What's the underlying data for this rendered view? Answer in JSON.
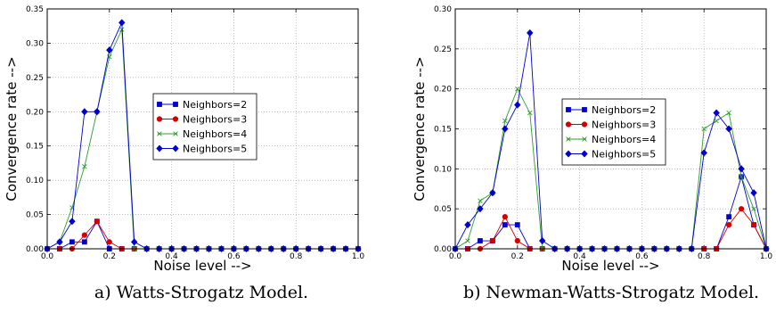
{
  "colors": {
    "series_colors": [
      "#0000cc",
      "#d40000",
      "#2e9c2e",
      "#0000cc"
    ],
    "grid": "#9a9a9a"
  },
  "chart_data": [
    {
      "type": "line",
      "caption": "a) Watts-Strogatz Model.",
      "xlabel": "Noise level -->",
      "ylabel": "Convergence rate -->",
      "xlim": [
        0.0,
        1.0
      ],
      "ylim": [
        0.0,
        0.35
      ],
      "xticks": [
        "0.0",
        "0.2",
        "0.4",
        "0.6",
        "0.8",
        "1.0"
      ],
      "yticks": [
        "0.00",
        "0.05",
        "0.10",
        "0.15",
        "0.20",
        "0.25",
        "0.30",
        "0.35"
      ],
      "grid": true,
      "legend_position": "center-right",
      "x": [
        0.0,
        0.04,
        0.08,
        0.12,
        0.16,
        0.2,
        0.24,
        0.28,
        0.32,
        0.36,
        0.4,
        0.44,
        0.48,
        0.52,
        0.56,
        0.6,
        0.64,
        0.68,
        0.72,
        0.76,
        0.8,
        0.84,
        0.88,
        0.92,
        0.96,
        1.0
      ],
      "series": [
        {
          "name": "Neighbors=2",
          "marker": "square",
          "values": [
            0,
            0,
            0.01,
            0.01,
            0.04,
            0,
            0,
            0,
            0,
            0,
            0,
            0,
            0,
            0,
            0,
            0,
            0,
            0,
            0,
            0,
            0,
            0,
            0,
            0,
            0,
            0
          ]
        },
        {
          "name": "Neighbors=3",
          "marker": "circle",
          "values": [
            0,
            0,
            0,
            0.02,
            0.04,
            0.01,
            0,
            0,
            0,
            0,
            0,
            0,
            0,
            0,
            0,
            0,
            0,
            0,
            0,
            0,
            0,
            0,
            0,
            0,
            0,
            0
          ]
        },
        {
          "name": "Neighbors=4",
          "marker": "x",
          "values": [
            0,
            0.01,
            0.06,
            0.12,
            0.2,
            0.28,
            0.32,
            0,
            0,
            0,
            0,
            0,
            0,
            0,
            0,
            0,
            0,
            0,
            0,
            0,
            0,
            0,
            0,
            0,
            0,
            0
          ]
        },
        {
          "name": "Neighbors=5",
          "marker": "diamond",
          "values": [
            0,
            0.01,
            0.04,
            0.2,
            0.2,
            0.29,
            0.33,
            0.01,
            0,
            0,
            0,
            0,
            0,
            0,
            0,
            0,
            0,
            0,
            0,
            0,
            0,
            0,
            0,
            0,
            0,
            0
          ]
        }
      ]
    },
    {
      "type": "line",
      "caption": "b) Newman-Watts-Strogatz Model.",
      "xlabel": "Noise level -->",
      "ylabel": "Convergence rate -->",
      "xlim": [
        0.0,
        1.0
      ],
      "ylim": [
        0.0,
        0.3
      ],
      "xticks": [
        "0.0",
        "0.2",
        "0.4",
        "0.6",
        "0.8",
        "1.0"
      ],
      "yticks": [
        "0.00",
        "0.05",
        "0.10",
        "0.15",
        "0.20",
        "0.25",
        "0.30"
      ],
      "grid": true,
      "legend_position": "center",
      "x": [
        0.0,
        0.04,
        0.08,
        0.12,
        0.16,
        0.2,
        0.24,
        0.28,
        0.32,
        0.36,
        0.4,
        0.44,
        0.48,
        0.52,
        0.56,
        0.6,
        0.64,
        0.68,
        0.72,
        0.76,
        0.8,
        0.84,
        0.88,
        0.92,
        0.96,
        1.0
      ],
      "series": [
        {
          "name": "Neighbors=2",
          "marker": "square",
          "values": [
            0,
            0,
            0.01,
            0.01,
            0.03,
            0.03,
            0,
            0,
            0,
            0,
            0,
            0,
            0,
            0,
            0,
            0,
            0,
            0,
            0,
            0,
            0,
            0,
            0.04,
            0.09,
            0.03,
            0
          ]
        },
        {
          "name": "Neighbors=3",
          "marker": "circle",
          "values": [
            0,
            0,
            0,
            0.01,
            0.04,
            0.01,
            0,
            0,
            0,
            0,
            0,
            0,
            0,
            0,
            0,
            0,
            0,
            0,
            0,
            0,
            0,
            0,
            0.03,
            0.05,
            0.03,
            0
          ]
        },
        {
          "name": "Neighbors=4",
          "marker": "x",
          "values": [
            0,
            0.01,
            0.06,
            0.07,
            0.16,
            0.2,
            0.17,
            0,
            0,
            0,
            0,
            0,
            0,
            0,
            0,
            0,
            0,
            0,
            0,
            0,
            0.15,
            0.16,
            0.17,
            0.09,
            0.05,
            0
          ]
        },
        {
          "name": "Neighbors=5",
          "marker": "diamond",
          "values": [
            0,
            0.03,
            0.05,
            0.07,
            0.15,
            0.18,
            0.27,
            0.01,
            0,
            0,
            0,
            0,
            0,
            0,
            0,
            0,
            0,
            0,
            0,
            0,
            0.12,
            0.17,
            0.15,
            0.1,
            0.07,
            0
          ]
        }
      ]
    }
  ]
}
